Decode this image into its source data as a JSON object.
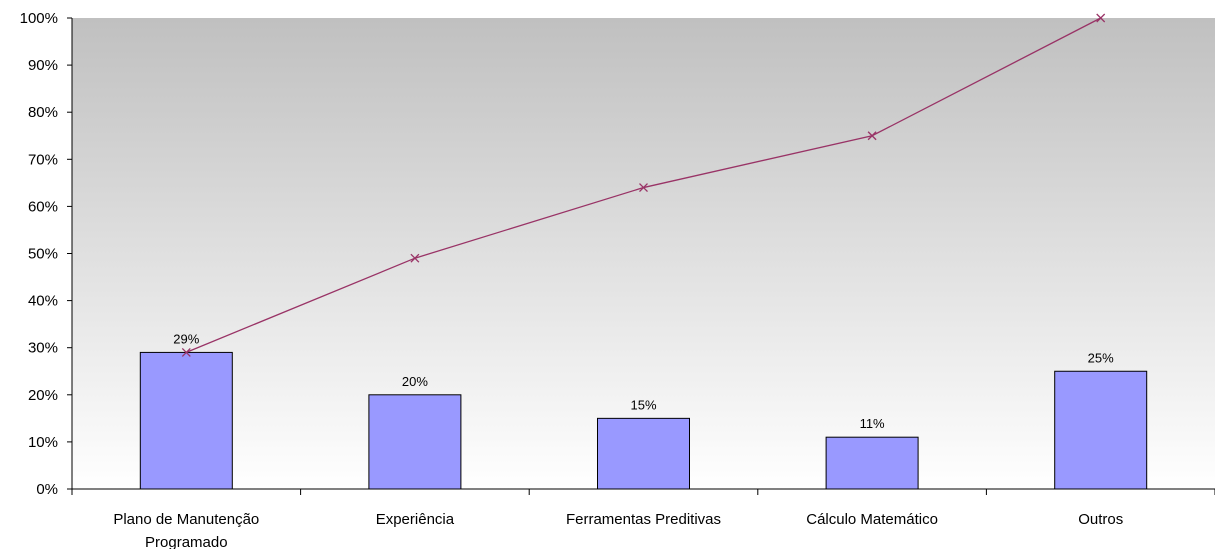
{
  "chart_data": {
    "type": "bar",
    "categories": [
      [
        "Plano de Manutenção",
        "Programado"
      ],
      [
        "Experiência"
      ],
      [
        "Ferramentas Preditivas"
      ],
      [
        "Cálculo Matemático"
      ],
      [
        "Outros"
      ]
    ],
    "series": [
      {
        "type": "bar",
        "values": [
          29,
          20,
          15,
          11,
          25
        ],
        "labels": [
          "29%",
          "20%",
          "15%",
          "11%",
          "25%"
        ],
        "color": "#9999ff"
      },
      {
        "type": "line",
        "values": [
          29,
          49,
          64,
          75,
          100
        ],
        "color": "#993366",
        "marker": "x"
      }
    ],
    "ylim": [
      0,
      100
    ],
    "yticks": [
      "0%",
      "10%",
      "20%",
      "30%",
      "40%",
      "50%",
      "60%",
      "70%",
      "80%",
      "90%",
      "100%"
    ],
    "grid": false,
    "plot_background": "gradient-gray-to-white",
    "colors": {
      "bar_fill": "#9999ff",
      "bar_stroke": "#000000",
      "line": "#993366",
      "bg_top": "#c0c0c0",
      "bg_bottom": "#ffffff"
    }
  }
}
